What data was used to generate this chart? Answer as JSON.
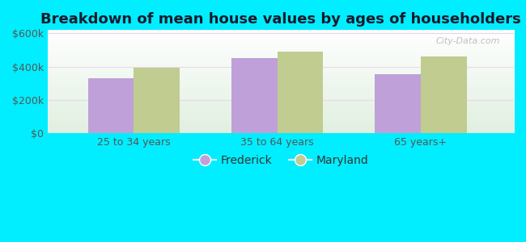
{
  "title": "Breakdown of mean house values by ages of householders",
  "categories": [
    "25 to 34 years",
    "35 to 64 years",
    "65 years+"
  ],
  "frederick_values": [
    330000,
    450000,
    355000
  ],
  "maryland_values": [
    395000,
    490000,
    460000
  ],
  "bar_color_frederick": "#c0a0d8",
  "bar_color_maryland": "#c0cc90",
  "background_color": "#00eeff",
  "ylabel_ticks": [
    0,
    200000,
    400000,
    600000
  ],
  "ylabel_labels": [
    "$0",
    "$200k",
    "$400k",
    "$600k"
  ],
  "ylim": [
    0,
    620000
  ],
  "legend_frederick": "Frederick",
  "legend_maryland": "Maryland",
  "title_fontsize": 13,
  "tick_fontsize": 9,
  "legend_fontsize": 10,
  "bar_width": 0.32,
  "watermark": "City-Data.com"
}
